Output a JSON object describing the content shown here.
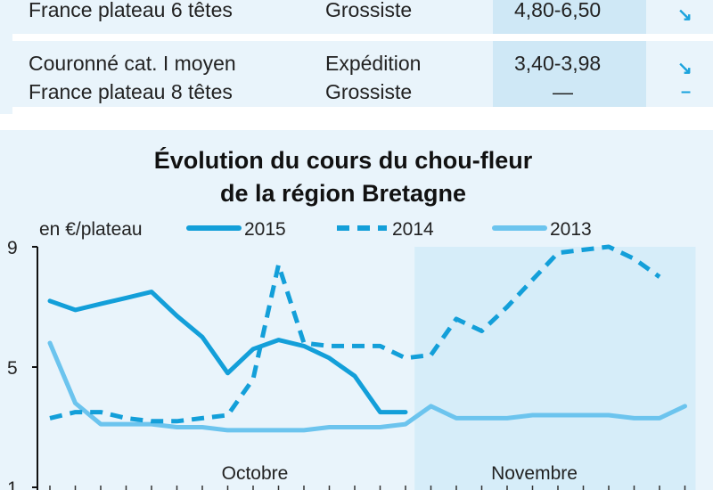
{
  "table": {
    "rows": [
      {
        "product": [
          "France plateau 6 têtes"
        ],
        "market": [
          "Grossiste"
        ],
        "price": [
          "4,80-6,50"
        ],
        "trend": [
          "↘"
        ]
      },
      {
        "product": [
          "Couronné cat. I moyen",
          "France plateau 8 têtes"
        ],
        "market": [
          "Expédition",
          "Grossiste"
        ],
        "price": [
          "3,40-3,98",
          "—"
        ],
        "trend": [
          "↘",
          "–"
        ]
      }
    ]
  },
  "chart_data": {
    "type": "line",
    "title": "Évolution du cours du chou-fleur",
    "subtitle": "de la région Bretagne",
    "unit_label": "en €/plateau",
    "ylim": [
      1,
      9
    ],
    "yticks": [
      1,
      5,
      9
    ],
    "x": [
      1,
      2,
      3,
      4,
      5,
      6,
      7,
      8,
      9,
      10,
      11,
      12,
      13,
      14,
      15,
      16,
      17,
      18,
      19,
      20,
      21,
      22,
      23,
      24,
      25,
      26
    ],
    "month_labels": [
      {
        "label": "Octobre",
        "x": 9
      },
      {
        "label": "Novembre",
        "x": 20
      }
    ],
    "november_start": 15,
    "series": [
      {
        "name": "2015",
        "style": "solid",
        "color": "#139fd9",
        "values": [
          7.2,
          6.9,
          7.1,
          7.3,
          7.5,
          6.7,
          6.0,
          4.8,
          5.6,
          5.9,
          5.7,
          5.3,
          4.7,
          3.5,
          3.5,
          null,
          null,
          null,
          null,
          null,
          null,
          null,
          null,
          null,
          null,
          null
        ]
      },
      {
        "name": "2014",
        "style": "dashed",
        "color": "#139fd9",
        "values": [
          3.3,
          3.5,
          3.5,
          3.3,
          3.2,
          3.2,
          3.3,
          3.4,
          4.6,
          8.4,
          5.8,
          5.7,
          5.7,
          5.7,
          5.3,
          5.4,
          6.6,
          6.2,
          7.0,
          7.9,
          8.8,
          8.9,
          9.0,
          8.6,
          8.0,
          null
        ]
      },
      {
        "name": "2013",
        "style": "solid-light",
        "color": "#6cc4ee",
        "values": [
          5.8,
          3.8,
          3.1,
          3.1,
          3.1,
          3.0,
          3.0,
          2.9,
          2.9,
          2.9,
          2.9,
          3.0,
          3.0,
          3.0,
          3.1,
          3.7,
          3.3,
          3.3,
          3.3,
          3.4,
          3.4,
          3.4,
          3.4,
          3.3,
          3.3,
          3.7
        ]
      }
    ]
  }
}
